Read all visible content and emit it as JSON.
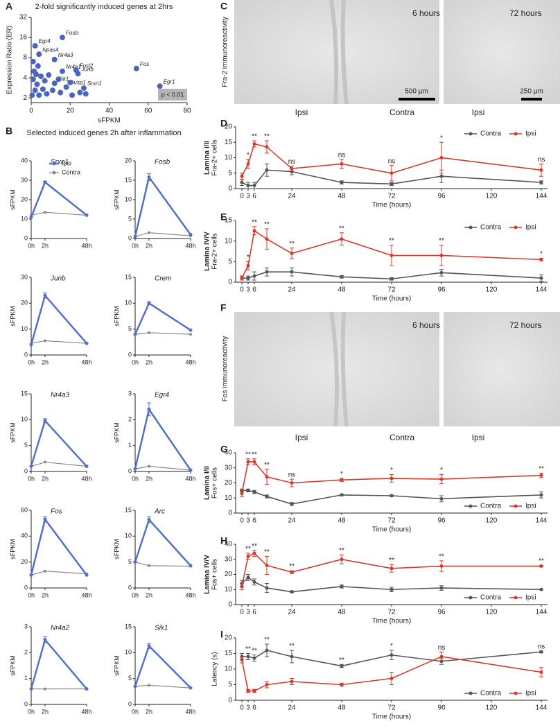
{
  "images": [
    {
      "panel": "C",
      "label": "Fra-2 immunoreactivity",
      "left": "6 hours",
      "right": "72 hours",
      "scale_left": "500 µm",
      "scale_right": "250 µm",
      "sides": [
        "Ipsi",
        "Contra",
        "Ipsi"
      ]
    },
    {
      "panel": "F",
      "label": "Fos immunoreactivity",
      "left": "6 hours",
      "right": "72 hours",
      "sides": [
        "Ipsi",
        "Contra",
        "Ipsi"
      ]
    }
  ],
  "chart_data": [
    {
      "type": "scatter",
      "panel": "A",
      "title": "2-fold significantly induced genes at 2hrs",
      "xlabel": "sFPKM",
      "ylabel": "Expression Ratio (ER)",
      "x": [
        2,
        16,
        4,
        12,
        16,
        23,
        24,
        54,
        66,
        12,
        18,
        27,
        0.5,
        1,
        1.5,
        2,
        3,
        3.5,
        4,
        5,
        6,
        7,
        8,
        9,
        11,
        14,
        15,
        20,
        21,
        25,
        28,
        1,
        2.5
      ],
      "y": [
        12,
        16,
        9,
        7.5,
        5,
        5.2,
        4.6,
        5.5,
        3,
        3.3,
        2.9,
        2.8,
        2.2,
        3.8,
        5,
        2.6,
        3.2,
        6,
        2.2,
        4.2,
        2.7,
        3.6,
        2.3,
        4.4,
        2.6,
        3.8,
        2.4,
        3.4,
        2.2,
        2.4,
        2.3,
        7,
        4.5
      ],
      "labels": [
        "Egr4",
        "Fosb",
        "Npas4",
        "Nr4a3",
        "Nr4a1",
        "Fosl2",
        "Junb",
        "Fos",
        "Egr1",
        "Sik1",
        "Dusp1",
        "Srxn1",
        null,
        null,
        null,
        null,
        null,
        null,
        null,
        null,
        null,
        null,
        null,
        null,
        null,
        null,
        null,
        null,
        null,
        null,
        null,
        null,
        null
      ],
      "color": "#4a64c0",
      "xlim": [
        0,
        80
      ],
      "xticks": [
        0,
        20,
        40,
        60,
        80
      ],
      "ylim": [
        1.7,
        32
      ],
      "yticks": [
        2,
        4,
        8,
        16,
        32
      ],
      "ylog": true,
      "annotation": "p < 0.01"
    },
    {
      "type": "small-multiples",
      "panel": "B",
      "title": "Selected induced genes 2h after inflammation",
      "charts": [
        {
          "title": "Srxn1",
          "ylabel": "sFPKM",
          "categories": [
            "0h",
            "2h",
            "48h"
          ],
          "ylim": [
            0,
            40
          ],
          "yticks": [
            0,
            10,
            20,
            30,
            40
          ],
          "legend": true,
          "series": [
            {
              "name": "Ipsi",
              "color": "#5470c6",
              "values": [
                11,
                29,
                12
              ],
              "errors": [
                null,
                0.5,
                null
              ]
            },
            {
              "name": "Contra",
              "color": "#8a8a8a",
              "values": [
                12,
                13.5,
                12
              ]
            }
          ]
        },
        {
          "title": "Fosb",
          "ylabel": "sFPKM",
          "categories": [
            "0h",
            "2h",
            "48h"
          ],
          "ylim": [
            0,
            20
          ],
          "yticks": [
            0,
            5,
            10,
            15,
            20
          ],
          "series": [
            {
              "color": "#5470c6",
              "values": [
                0.5,
                15.8,
                1
              ],
              "errors": [
                null,
                0.9,
                null
              ]
            },
            {
              "color": "#8a8a8a",
              "values": [
                0.5,
                1.5,
                0.7
              ]
            }
          ]
        },
        {
          "title": "Junb",
          "ylabel": "sFPKM",
          "categories": [
            "0h",
            "2h",
            "48h"
          ],
          "ylim": [
            0,
            30
          ],
          "yticks": [
            0,
            10,
            20,
            30
          ],
          "series": [
            {
              "color": "#5470c6",
              "values": [
                4,
                23,
                4.5
              ],
              "errors": [
                null,
                1,
                null
              ]
            },
            {
              "color": "#8a8a8a",
              "values": [
                4.5,
                5.5,
                4.5
              ]
            }
          ]
        },
        {
          "title": "Crem",
          "ylabel": "sFPKM",
          "categories": [
            "0h",
            "2h",
            "48h"
          ],
          "ylim": [
            0,
            15
          ],
          "yticks": [
            0,
            5,
            10,
            15
          ],
          "series": [
            {
              "color": "#5470c6",
              "values": [
                4,
                10,
                4.8
              ],
              "errors": [
                null,
                0.3,
                null
              ]
            },
            {
              "color": "#8a8a8a",
              "values": [
                4,
                4.3,
                4
              ]
            }
          ]
        },
        {
          "title": "Nr4a3",
          "ylabel": "sFPKM",
          "categories": [
            "0h",
            "2h",
            "48h"
          ],
          "ylim": [
            0,
            15
          ],
          "yticks": [
            0,
            5,
            10,
            15
          ],
          "series": [
            {
              "color": "#5470c6",
              "values": [
                1,
                9.8,
                1
              ],
              "errors": [
                null,
                0.4,
                null
              ]
            },
            {
              "color": "#8a8a8a",
              "values": [
                1,
                1.8,
                1
              ]
            }
          ]
        },
        {
          "title": "Egr4",
          "ylabel": "sFPKM",
          "categories": [
            "0h",
            "2h",
            "48h"
          ],
          "ylim": [
            0,
            3
          ],
          "yticks": [
            0,
            1,
            2,
            3
          ],
          "series": [
            {
              "color": "#5470c6",
              "values": [
                0.1,
                2.4,
                0.05
              ],
              "errors": [
                null,
                0.25,
                null
              ]
            },
            {
              "color": "#8a8a8a",
              "values": [
                0.1,
                0.2,
                0.05
              ]
            }
          ]
        },
        {
          "title": "Fos",
          "ylabel": "sFPKM",
          "categories": [
            "0h",
            "2h",
            "48h"
          ],
          "ylim": [
            0,
            60
          ],
          "yticks": [
            0,
            20,
            40,
            60
          ],
          "series": [
            {
              "color": "#5470c6",
              "values": [
                10,
                53,
                10
              ],
              "errors": [
                null,
                2,
                null
              ]
            },
            {
              "color": "#8a8a8a",
              "values": [
                10,
                13,
                11
              ]
            }
          ]
        },
        {
          "title": "Arc",
          "ylabel": "sFPKM",
          "categories": [
            "0h",
            "2h",
            "48h"
          ],
          "ylim": [
            0,
            15
          ],
          "yticks": [
            0,
            5,
            10,
            15
          ],
          "series": [
            {
              "color": "#5470c6",
              "values": [
                5,
                13.2,
                4.3
              ],
              "errors": [
                null,
                0.6,
                null
              ]
            },
            {
              "color": "#8a8a8a",
              "values": [
                5,
                4.3,
                4.2
              ]
            }
          ]
        },
        {
          "title": "Nr4a2",
          "ylabel": "sFPKM",
          "categories": [
            "0h",
            "2h",
            "48h"
          ],
          "ylim": [
            0,
            3
          ],
          "yticks": [
            0,
            1,
            2,
            3
          ],
          "series": [
            {
              "color": "#5470c6",
              "values": [
                0.6,
                2.5,
                0.6
              ],
              "errors": [
                null,
                0.12,
                null
              ]
            },
            {
              "color": "#8a8a8a",
              "values": [
                0.6,
                0.6,
                0.6
              ]
            }
          ]
        },
        {
          "title": "Sik1",
          "ylabel": "sFPKM",
          "categories": [
            "0h",
            "2h",
            "48h"
          ],
          "ylim": [
            0,
            15
          ],
          "yticks": [
            0,
            5,
            10,
            15
          ],
          "series": [
            {
              "color": "#5470c6",
              "values": [
                3.5,
                11.3,
                3.2
              ],
              "errors": [
                null,
                0.5,
                null
              ]
            },
            {
              "color": "#8a8a8a",
              "values": [
                3.5,
                3.7,
                3.2
              ]
            }
          ]
        }
      ]
    },
    {
      "type": "line",
      "panel": "D",
      "ylabel": [
        "Lamina I/II",
        "Fra-2+ cells"
      ],
      "xlabel": "Time (hours)",
      "x": [
        0,
        3,
        6,
        12,
        24,
        48,
        72,
        96,
        144
      ],
      "xlim": [
        -3,
        147
      ],
      "xticks": [
        0,
        3,
        6,
        24,
        48,
        72,
        96,
        120,
        144
      ],
      "ylim": [
        0,
        20
      ],
      "yticks": [
        0,
        5,
        10,
        15,
        20
      ],
      "legend": "upper right",
      "series": [
        {
          "name": "Contra",
          "color": "#555555",
          "values": [
            2,
            1,
            1,
            6,
            5.5,
            2,
            1.5,
            4,
            2
          ],
          "errors": [
            1,
            1,
            1,
            2,
            1,
            0.5,
            0.5,
            2,
            0.5
          ]
        },
        {
          "name": "Ipsi",
          "color": "#d7392b",
          "values": [
            4,
            8,
            14.5,
            13.5,
            6.5,
            8,
            5,
            10,
            6
          ],
          "errors": [
            1,
            1.5,
            1,
            2,
            0.8,
            1.5,
            2.5,
            5,
            2
          ]
        }
      ],
      "significance": [
        null,
        "*",
        "**",
        "**",
        "ns",
        "ns",
        "ns",
        "*",
        "ns"
      ]
    },
    {
      "type": "line",
      "panel": "E",
      "ylabel": [
        "Lamina IV/V",
        "Fra-2+ cells"
      ],
      "xlabel": "Time (hours)",
      "x": [
        0,
        3,
        6,
        12,
        24,
        48,
        72,
        96,
        144
      ],
      "xlim": [
        -3,
        147
      ],
      "xticks": [
        0,
        3,
        6,
        24,
        48,
        72,
        96,
        120,
        144
      ],
      "ylim": [
        0,
        15
      ],
      "yticks": [
        0,
        5,
        10,
        15
      ],
      "legend": "upper right",
      "series": [
        {
          "name": "Contra",
          "color": "#555555",
          "values": [
            1,
            1,
            1.5,
            2.5,
            2.5,
            1.3,
            0.8,
            2.3,
            1
          ],
          "errors": [
            0.5,
            0.5,
            1,
            1,
            1,
            0.3,
            0.3,
            0.8,
            0.8
          ]
        },
        {
          "name": "Ipsi",
          "color": "#d7392b",
          "values": [
            1,
            4,
            12.5,
            10.5,
            7,
            10.5,
            6.5,
            6.5,
            5.5
          ],
          "errors": [
            0.5,
            1,
            1,
            2.5,
            1.3,
            1.5,
            2.5,
            2.5,
            0.3
          ]
        }
      ],
      "significance": [
        null,
        "*",
        "**",
        "**",
        "**",
        "**",
        "**",
        "**",
        "*"
      ]
    },
    {
      "type": "line",
      "panel": "G",
      "ylabel": [
        "Lamina I/II",
        "Fos+ cells"
      ],
      "xlabel": "Time (hours)",
      "x": [
        0,
        3,
        6,
        12,
        24,
        48,
        72,
        96,
        144
      ],
      "xlim": [
        -3,
        147
      ],
      "xticks": [
        0,
        3,
        6,
        24,
        48,
        72,
        96,
        120,
        144
      ],
      "ylim": [
        0,
        40
      ],
      "yticks": [
        0,
        10,
        20,
        30,
        40
      ],
      "legend": "lower right",
      "series": [
        {
          "name": "Contra",
          "color": "#555555",
          "values": [
            15,
            15,
            14,
            11,
            6,
            12,
            11.5,
            9.5,
            12
          ],
          "errors": [
            1,
            1,
            1,
            1,
            1,
            0.5,
            0.5,
            2,
            2
          ]
        },
        {
          "name": "Ipsi",
          "color": "#d7392b",
          "values": [
            13,
            34,
            34,
            24,
            20,
            22,
            23,
            22.5,
            25
          ],
          "errors": [
            2,
            2,
            2,
            5,
            2.5,
            1,
            2.5,
            3,
            1.5
          ]
        }
      ],
      "significance": [
        null,
        "**",
        "**",
        "**",
        "ns",
        "*",
        "*",
        "*",
        "**"
      ]
    },
    {
      "type": "line",
      "panel": "H",
      "ylabel": [
        "Lamina IV/V",
        "Fos+ cells"
      ],
      "xlabel": "Time (hours)",
      "x": [
        0,
        3,
        6,
        12,
        24,
        48,
        72,
        96,
        144
      ],
      "xlim": [
        -3,
        147
      ],
      "xticks": [
        0,
        3,
        6,
        24,
        48,
        72,
        96,
        120,
        144
      ],
      "ylim": [
        0,
        40
      ],
      "yticks": [
        0,
        10,
        20,
        30,
        40
      ],
      "legend": "lower right",
      "series": [
        {
          "name": "Contra",
          "color": "#555555",
          "values": [
            14,
            18,
            15,
            11,
            8.5,
            12,
            10,
            11,
            10
          ],
          "errors": [
            2,
            2,
            2,
            3,
            0.5,
            1,
            1.5,
            1.5,
            0.3
          ]
        },
        {
          "name": "Ipsi",
          "color": "#d7392b",
          "values": [
            12,
            32,
            34,
            26,
            21.5,
            30,
            24,
            25.5,
            25.5
          ],
          "errors": [
            2,
            2,
            2,
            6,
            1,
            3,
            2.5,
            3.5,
            0.5
          ]
        }
      ],
      "significance": [
        null,
        "**",
        "**",
        "**",
        "**",
        "**",
        "**",
        "**",
        "**"
      ]
    },
    {
      "type": "line",
      "panel": "I",
      "ylabel": [
        "Latency (s)"
      ],
      "xlabel": "Time (hours)",
      "x": [
        0,
        3,
        6,
        12,
        24,
        48,
        72,
        96,
        144
      ],
      "xlim": [
        -3,
        147
      ],
      "xticks": [
        0,
        3,
        6,
        24,
        48,
        72,
        96,
        120,
        144
      ],
      "ylim": [
        0,
        20
      ],
      "yticks": [
        0,
        5,
        10,
        15,
        20
      ],
      "legend": "lower right",
      "series": [
        {
          "name": "Contra",
          "color": "#555555",
          "values": [
            14,
            14,
            13.5,
            16,
            14,
            11,
            14.5,
            12.5,
            15.5
          ],
          "errors": [
            1,
            1,
            1,
            2,
            2,
            0.5,
            1.5,
            1,
            0.3
          ]
        },
        {
          "name": "Ipsi",
          "color": "#d7392b",
          "values": [
            13,
            3,
            3,
            5,
            6,
            5,
            7,
            14,
            9
          ],
          "errors": [
            1,
            0.5,
            0.5,
            1,
            1,
            0.5,
            2,
            1.5,
            1.5
          ]
        }
      ],
      "significance": [
        null,
        "**",
        "**",
        "**",
        "**",
        "**",
        "*",
        "ns",
        "ns"
      ]
    }
  ]
}
